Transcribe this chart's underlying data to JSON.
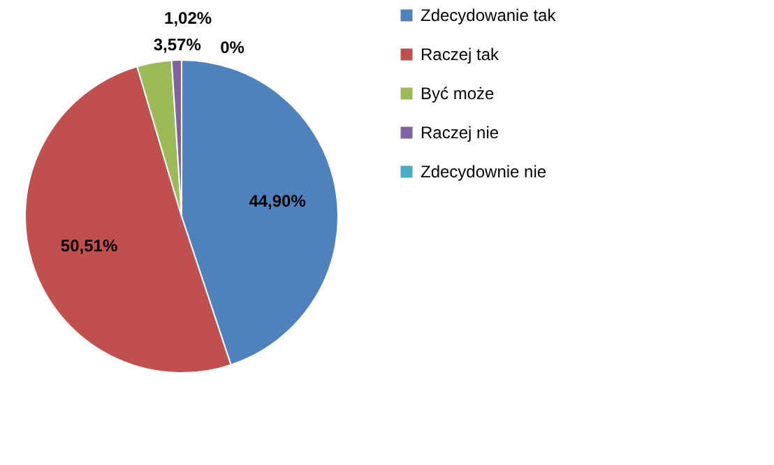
{
  "chart_data": {
    "type": "pie",
    "categories": [
      "Zdecydowanie tak",
      "Raczej tak",
      "Być może",
      "Raczej nie",
      "Zdecydownie nie"
    ],
    "values": [
      44.9,
      50.51,
      3.57,
      1.02,
      0
    ],
    "colors": [
      "#4f81bd",
      "#c0504d",
      "#9bbb59",
      "#8064a2",
      "#4bacc6"
    ],
    "value_labels": [
      "44,90%",
      "50,51%",
      "3,57%",
      "1,02%",
      "0%"
    ],
    "legend": "right"
  }
}
